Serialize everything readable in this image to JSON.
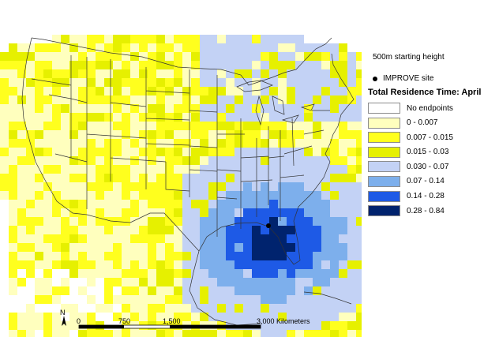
{
  "legend": {
    "starting_height": "500m starting height",
    "site_label": "IMPROVE site",
    "title": "Total Residence Time: April",
    "classes": [
      {
        "label": "No endpoints",
        "color": "#ffffff"
      },
      {
        "label": "0 - 0.007",
        "color": "#ffffbe"
      },
      {
        "label": "0.007 - 0.015",
        "color": "#ffff1e"
      },
      {
        "label": "0.015 - 0.03",
        "color": "#e6f000"
      },
      {
        "label": "0.030 - 0.07",
        "color": "#c3d2f5"
      },
      {
        "label": "0.07 - 0.14",
        "color": "#7dafec"
      },
      {
        "label": "0.14 - 0.28",
        "color": "#1e5ae6"
      },
      {
        "label": "0.28 - 0.84",
        "color": "#00236e"
      }
    ]
  },
  "scale_bar": {
    "north_label": "N",
    "ticks": [
      "0",
      "750",
      "1,500",
      "3,000 Kilometers"
    ]
  },
  "colors": {
    "outline": "#333333",
    "background": "#ffffff"
  }
}
